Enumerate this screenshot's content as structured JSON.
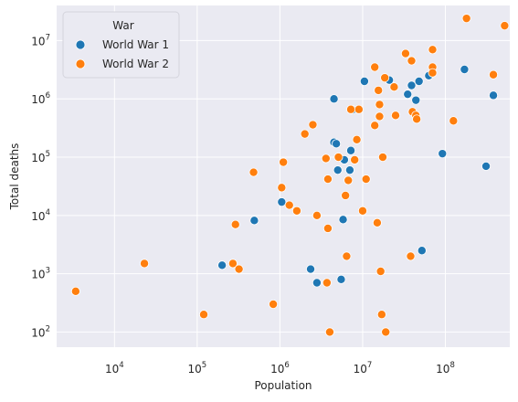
{
  "chart_data": {
    "type": "scatter",
    "title": "",
    "xlabel": "Population",
    "ylabel": "Total deaths",
    "xscale": "log",
    "yscale": "log",
    "xlim": [
      2000,
      600000000
    ],
    "ylim": [
      55,
      40000000
    ],
    "grid": true,
    "legend": {
      "title": "War",
      "placement": "top-left",
      "entries": [
        "World War 1",
        "World War 2"
      ]
    },
    "x_ticks": [
      {
        "value": 10000,
        "base": "10",
        "exp": "4"
      },
      {
        "value": 100000,
        "base": "10",
        "exp": "5"
      },
      {
        "value": 1000000,
        "base": "10",
        "exp": "6"
      },
      {
        "value": 10000000,
        "base": "10",
        "exp": "7"
      },
      {
        "value": 100000000,
        "base": "10",
        "exp": "8"
      }
    ],
    "y_ticks": [
      {
        "value": 100,
        "base": "10",
        "exp": "2"
      },
      {
        "value": 1000,
        "base": "10",
        "exp": "3"
      },
      {
        "value": 10000,
        "base": "10",
        "exp": "4"
      },
      {
        "value": 100000,
        "base": "10",
        "exp": "5"
      },
      {
        "value": 1000000,
        "base": "10",
        "exp": "6"
      },
      {
        "value": 10000000,
        "base": "10",
        "exp": "7"
      }
    ],
    "series": [
      {
        "name": "World War 1",
        "color": "#1f77b4",
        "points": [
          [
            490000,
            8200
          ],
          [
            200000,
            1400
          ],
          [
            1050000,
            17000
          ],
          [
            2350000,
            1200
          ],
          [
            2800000,
            700
          ],
          [
            4500000,
            1000000
          ],
          [
            4500000,
            180000
          ],
          [
            4800000,
            170000
          ],
          [
            5000000,
            60000
          ],
          [
            5500000,
            800
          ],
          [
            5800000,
            8500
          ],
          [
            6000000,
            90000
          ],
          [
            7000000,
            60000
          ],
          [
            7200000,
            130000
          ],
          [
            7500000,
            650000
          ],
          [
            10500000,
            2000000
          ],
          [
            21000000,
            2100000
          ],
          [
            35000000,
            1200000
          ],
          [
            39000000,
            1700000
          ],
          [
            44000000,
            950000
          ],
          [
            48000000,
            2000000
          ],
          [
            52000000,
            2500
          ],
          [
            63000000,
            2500000
          ],
          [
            92000000,
            115000
          ],
          [
            170000000,
            3200000
          ],
          [
            310000000,
            70000
          ],
          [
            380000000,
            1150000
          ]
        ]
      },
      {
        "name": "World War 2",
        "color": "#ff7f0e",
        "points": [
          [
            3400,
            500
          ],
          [
            23000,
            1500
          ],
          [
            120000,
            200
          ],
          [
            270000,
            1500
          ],
          [
            290000,
            7000
          ],
          [
            320000,
            1200
          ],
          [
            480000,
            55000
          ],
          [
            830000,
            300
          ],
          [
            1050000,
            30000
          ],
          [
            1100000,
            82000
          ],
          [
            1300000,
            15000
          ],
          [
            1600000,
            12000
          ],
          [
            2000000,
            250000
          ],
          [
            2500000,
            360000
          ],
          [
            2800000,
            10000
          ],
          [
            3600000,
            95000
          ],
          [
            3700000,
            700
          ],
          [
            3800000,
            42000
          ],
          [
            3800000,
            6000
          ],
          [
            4000000,
            100
          ],
          [
            5100000,
            100000
          ],
          [
            6200000,
            22000
          ],
          [
            6400000,
            2000
          ],
          [
            6700000,
            40000
          ],
          [
            7200000,
            660000
          ],
          [
            8000000,
            90000
          ],
          [
            8500000,
            200000
          ],
          [
            9000000,
            660000
          ],
          [
            10000000,
            12000
          ],
          [
            11000000,
            42000
          ],
          [
            14000000,
            3500000
          ],
          [
            14000000,
            350000
          ],
          [
            15000000,
            7500
          ],
          [
            15500000,
            1400000
          ],
          [
            16000000,
            800000
          ],
          [
            16000000,
            500000
          ],
          [
            16500000,
            1100
          ],
          [
            17000000,
            200
          ],
          [
            17500000,
            100000
          ],
          [
            18500000,
            2300000
          ],
          [
            19000000,
            100
          ],
          [
            24000000,
            1600000
          ],
          [
            25000000,
            520000
          ],
          [
            33000000,
            6000000
          ],
          [
            38000000,
            2000
          ],
          [
            39000000,
            4500000
          ],
          [
            40000000,
            600000
          ],
          [
            44000000,
            520000
          ],
          [
            45000000,
            450000
          ],
          [
            70000000,
            7000000
          ],
          [
            70000000,
            3500000
          ],
          [
            70000000,
            2800000
          ],
          [
            125000000,
            420000
          ],
          [
            180000000,
            24000000
          ],
          [
            380000000,
            2600000
          ],
          [
            520000000,
            18000000
          ]
        ]
      }
    ]
  }
}
